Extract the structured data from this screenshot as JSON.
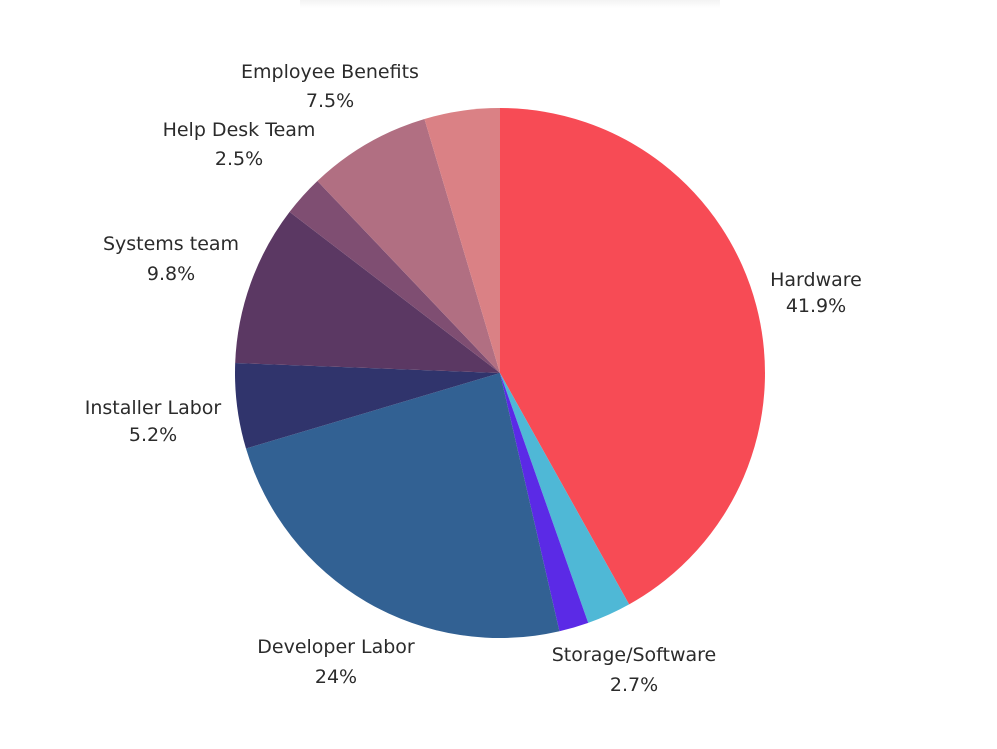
{
  "chart_data": {
    "type": "pie",
    "slices": [
      {
        "label": "Hardware",
        "value": 41.9,
        "display": "41.9%",
        "color": "#f74b55"
      },
      {
        "label": "Storage/Software",
        "value": 2.7,
        "display": "2.7%",
        "color": "#4fb8d6"
      },
      {
        "label": "",
        "value": 1.8,
        "display": "",
        "color": "#5b2ae6"
      },
      {
        "label": "Developer Labor",
        "value": 24.0,
        "display": "24%",
        "color": "#326193"
      },
      {
        "label": "Installer Labor",
        "value": 5.2,
        "display": "5.2%",
        "color": "#30346c"
      },
      {
        "label": "Systems team",
        "value": 9.8,
        "display": "9.8%",
        "color": "#5b3863"
      },
      {
        "label": "Help Desk Team",
        "value": 2.5,
        "display": "2.5%",
        "color": "#7f4e72"
      },
      {
        "label": "Employee Benefits",
        "value": 7.5,
        "display": "7.5%",
        "color": "#b16f82"
      },
      {
        "label": "",
        "value": 4.6,
        "display": "",
        "color": "#da8185"
      }
    ]
  }
}
